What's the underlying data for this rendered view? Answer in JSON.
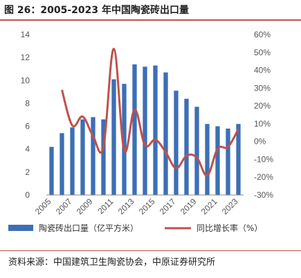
{
  "title": "图 26：2005-2023 年中国陶瓷砖出口量",
  "source": "资料来源：中国建筑卫生陶瓷协会，中原证券研究所",
  "colors": {
    "bar": "#3d6fb6",
    "line": "#c0504d",
    "rule": "#c0504d"
  },
  "chart_data": {
    "type": "bar",
    "x": [
      2005,
      2006,
      2007,
      2008,
      2009,
      2010,
      2011,
      2012,
      2013,
      2014,
      2015,
      2016,
      2017,
      2018,
      2019,
      2020,
      2021,
      2022,
      2023
    ],
    "x_tick_labels": [
      "2005",
      "2007",
      "2009",
      "2011",
      "2013",
      "2015",
      "2017",
      "2019",
      "2021",
      "2023"
    ],
    "series": [
      {
        "name": "陶瓷砖出口量（亿平方米）",
        "type": "bar",
        "axis": "left",
        "values": [
          4.2,
          5.4,
          5.9,
          6.6,
          6.8,
          6.6,
          10.1,
          9.7,
          11.4,
          11.2,
          11.3,
          10.7,
          9.1,
          8.4,
          7.7,
          6.2,
          6.0,
          5.8,
          6.2
        ]
      },
      {
        "name": "同比增长率（%）",
        "type": "line",
        "axis": "right",
        "values": [
          null,
          29,
          9,
          14,
          3,
          -3,
          52,
          -5,
          18,
          -2,
          1,
          -6,
          -15,
          -8,
          -9,
          -19,
          -4,
          -3,
          7
        ]
      }
    ],
    "y_left": {
      "min": 0,
      "max": 14,
      "ticks": [
        "0",
        "2",
        "4",
        "6",
        "8",
        "10",
        "12",
        "14"
      ]
    },
    "y_right": {
      "min": -30,
      "max": 60,
      "ticks": [
        "-30%",
        "-20%",
        "-10%",
        "0%",
        "10%",
        "20%",
        "30%",
        "40%",
        "50%",
        "60%"
      ]
    },
    "legend": {
      "position": "bottom",
      "items": [
        {
          "label": "陶瓷砖出口量（亿平方米）",
          "type": "bar"
        },
        {
          "label": "同比增长率（%）",
          "type": "line"
        }
      ]
    },
    "grid": false
  }
}
